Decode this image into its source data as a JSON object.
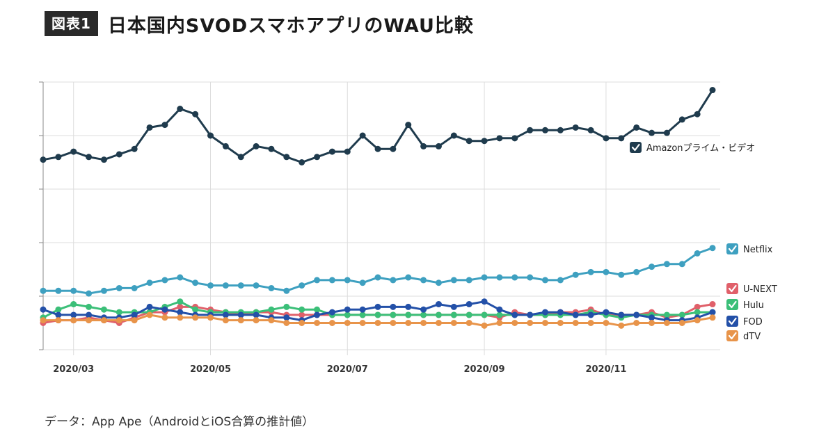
{
  "header": {
    "badge": "図表1",
    "title": "日本国内SVODスマホアプリのWAU比較"
  },
  "source": "データ：App Ape（AndroidとiOS合算の推計値）",
  "chart_data": {
    "type": "line",
    "title": "日本国内SVODスマホアプリのWAU比較",
    "xlabel": "",
    "ylabel": "",
    "x_tick_labels": [
      "2020/03",
      "2020/05",
      "2020/07",
      "2020/09",
      "2020/11"
    ],
    "x_tick_index": [
      2,
      11,
      20,
      29,
      37
    ],
    "ylim": [
      0,
      100
    ],
    "y_gridlines": [
      0,
      20,
      40,
      60,
      80,
      100
    ],
    "grid": true,
    "legend_position": "right",
    "series": [
      {
        "name": "Amazonプライム・ビデオ",
        "color": "#1f3b4d",
        "marker": true,
        "values": [
          71,
          72,
          74,
          72,
          71,
          73,
          75,
          83,
          84,
          90,
          88,
          80,
          76,
          72,
          76,
          75,
          72,
          70,
          72,
          74,
          74,
          80,
          75,
          75,
          84,
          76,
          76,
          80,
          78,
          78,
          79,
          79,
          82,
          82,
          82,
          83,
          82,
          79,
          79,
          83,
          81,
          81,
          86,
          88,
          97
        ]
      },
      {
        "name": "Netflix",
        "color": "#3ea0c0",
        "marker": true,
        "values": [
          22,
          22,
          22,
          21,
          22,
          23,
          23,
          25,
          26,
          27,
          25,
          24,
          24,
          24,
          24,
          23,
          22,
          24,
          26,
          26,
          26,
          25,
          27,
          26,
          27,
          26,
          25,
          26,
          26,
          27,
          27,
          27,
          27,
          26,
          26,
          28,
          29,
          29,
          28,
          29,
          31,
          32,
          32,
          36,
          38
        ]
      },
      {
        "name": "U-NEXT",
        "color": "#e0606a",
        "marker": true,
        "values": [
          10,
          11,
          11,
          12,
          11,
          10,
          12,
          14,
          14,
          16,
          16,
          15,
          14,
          13,
          14,
          14,
          13,
          13,
          13,
          13,
          13,
          13,
          13,
          13,
          13,
          13,
          13,
          13,
          13,
          13,
          12,
          14,
          13,
          13,
          14,
          14,
          15,
          13,
          13,
          13,
          14,
          12,
          13,
          16,
          17
        ]
      },
      {
        "name": "Hulu",
        "color": "#3bbf78",
        "marker": true,
        "values": [
          12,
          15,
          17,
          16,
          15,
          14,
          14,
          14,
          16,
          18,
          15,
          14,
          14,
          14,
          14,
          15,
          16,
          15,
          15,
          13,
          13,
          13,
          13,
          13,
          13,
          13,
          13,
          13,
          13,
          13,
          13,
          13,
          13,
          13,
          13,
          13,
          14,
          13,
          12,
          13,
          13,
          13,
          13,
          14,
          14
        ]
      },
      {
        "name": "FOD",
        "color": "#2350a8",
        "marker": true,
        "values": [
          15,
          13,
          13,
          13,
          12,
          12,
          13,
          16,
          15,
          14,
          13,
          13,
          13,
          13,
          13,
          12,
          12,
          11,
          13,
          14,
          15,
          15,
          16,
          16,
          16,
          15,
          17,
          16,
          17,
          18,
          15,
          13,
          13,
          14,
          14,
          13,
          13,
          14,
          13,
          13,
          12,
          11,
          11,
          12,
          14
        ]
      },
      {
        "name": "dTV",
        "color": "#e8944a",
        "marker": true,
        "values": [
          11,
          11,
          11,
          11,
          11,
          11,
          11,
          13,
          12,
          12,
          12,
          12,
          11,
          11,
          11,
          11,
          10,
          10,
          10,
          10,
          10,
          10,
          10,
          10,
          10,
          10,
          10,
          10,
          10,
          9,
          10,
          10,
          10,
          10,
          10,
          10,
          10,
          10,
          9,
          10,
          10,
          10,
          10,
          11,
          12
        ]
      }
    ]
  }
}
